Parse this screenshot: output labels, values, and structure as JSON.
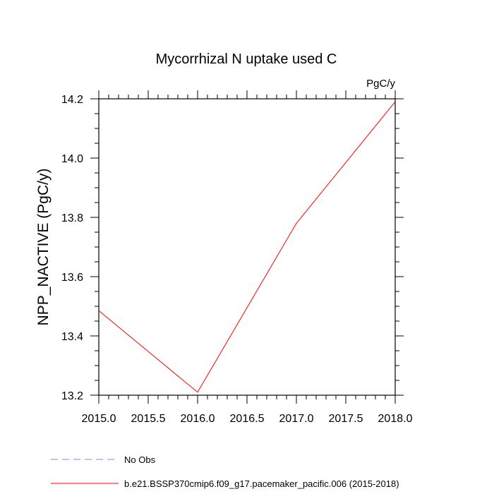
{
  "chart_data": {
    "type": "line",
    "title": "Mycorrhizal N uptake used C",
    "units_label": "PgC/y",
    "ylabel": "NPP_NACTIVE  (PgC/y)",
    "xlabel": "",
    "xlim": [
      2015.0,
      2018.0
    ],
    "ylim": [
      13.2,
      14.2
    ],
    "x_ticks": [
      "2015.0",
      "2015.5",
      "2016.0",
      "2016.5",
      "2017.0",
      "2017.5",
      "2018.0"
    ],
    "y_ticks": [
      "13.2",
      "13.4",
      "13.6",
      "13.8",
      "14.0",
      "14.2"
    ],
    "grid": false,
    "legend_position": "bottom",
    "series": [
      {
        "name": "b.e21.BSSP370cmip6.f09_g17.pacemaker_pacific.006 (2015-2018)",
        "color": "#ff0000",
        "style": "solid",
        "x": [
          2015.0,
          2016.0,
          2017.0,
          2018.0
        ],
        "y": [
          13.485,
          13.21,
          13.78,
          14.19
        ]
      },
      {
        "name": "No Obs",
        "color": "#8080ff",
        "style": "dashed",
        "x": [],
        "y": []
      }
    ]
  }
}
